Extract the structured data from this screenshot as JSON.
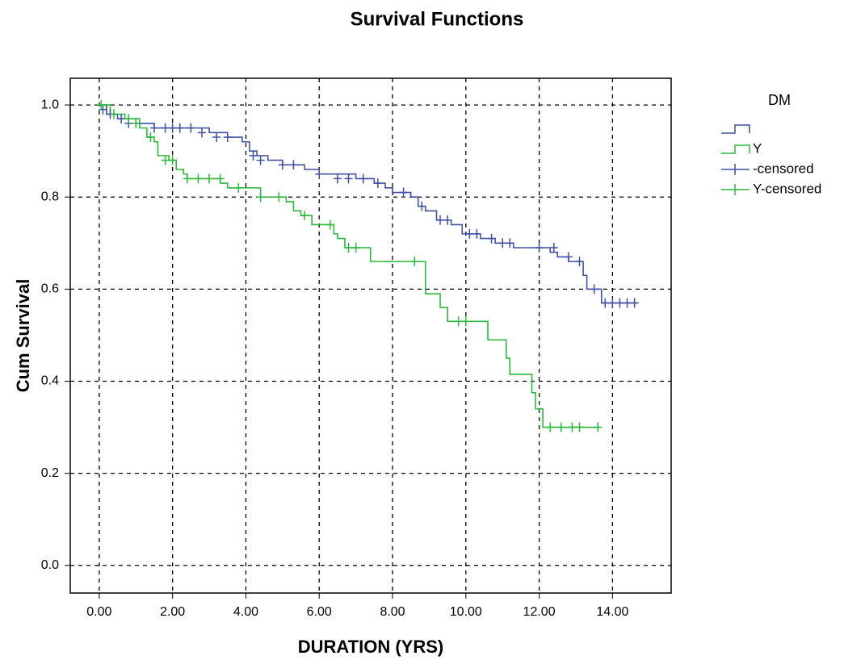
{
  "chart_data": {
    "type": "step",
    "title": "Survival Functions",
    "x_label": "DURATION (YRS)",
    "y_label": "Cum Survival",
    "legend_title": "DM",
    "xlim": [
      -0.79,
      15.6
    ],
    "ylim": [
      -0.06,
      1.058
    ],
    "xticks": [
      {
        "value": 0,
        "label": "0.00"
      },
      {
        "value": 2,
        "label": "2.00"
      },
      {
        "value": 4,
        "label": "4.00"
      },
      {
        "value": 6,
        "label": "6.00"
      },
      {
        "value": 8,
        "label": "8.00"
      },
      {
        "value": 10,
        "label": "10.00"
      },
      {
        "value": 12,
        "label": "12.00"
      },
      {
        "value": 14,
        "label": "14.00"
      }
    ],
    "yticks": [
      {
        "value": 0,
        "label": "0.0"
      },
      0.2,
      0.4,
      0.6,
      0.8,
      {
        "value": 1,
        "label": "1.0"
      }
    ],
    "grid": true,
    "legend": "right",
    "series": [
      {
        "color": "#3f51a3",
        "kind": "curve",
        "x": [
          0,
          0.2,
          0.5,
          1.0,
          1.5,
          3.0,
          3.5,
          3.9,
          4.1,
          4.3,
          4.6,
          5.0,
          5.6,
          6.0,
          7.0,
          7.5,
          7.8,
          8.0,
          8.5,
          8.7,
          8.9,
          9.2,
          9.6,
          9.9,
          10.4,
          10.8,
          11.3,
          12.3,
          12.5,
          12.8,
          13.2,
          13.3,
          13.7,
          14.7
        ],
        "values": [
          1.0,
          0.98,
          0.97,
          0.96,
          0.95,
          0.94,
          0.93,
          0.92,
          0.9,
          0.89,
          0.88,
          0.87,
          0.86,
          0.85,
          0.84,
          0.83,
          0.82,
          0.81,
          0.8,
          0.78,
          0.77,
          0.75,
          0.74,
          0.72,
          0.71,
          0.7,
          0.69,
          0.68,
          0.67,
          0.66,
          0.63,
          0.6,
          0.57,
          0.57
        ]
      },
      {
        "name": "Y",
        "color": "#2db83d",
        "kind": "curve",
        "x": [
          0,
          0.3,
          0.7,
          1.1,
          1.3,
          1.5,
          1.6,
          1.9,
          2.1,
          2.3,
          2.4,
          3.3,
          3.5,
          4.4,
          5.1,
          5.3,
          5.5,
          5.8,
          6.4,
          6.5,
          6.7,
          7.4,
          8.9,
          9.3,
          9.5,
          10.6,
          11.1,
          11.2,
          11.8,
          11.9,
          12.1,
          13.6
        ],
        "values": [
          1.0,
          0.98,
          0.97,
          0.95,
          0.93,
          0.92,
          0.89,
          0.88,
          0.86,
          0.85,
          0.84,
          0.83,
          0.82,
          0.8,
          0.79,
          0.77,
          0.76,
          0.74,
          0.72,
          0.71,
          0.69,
          0.66,
          0.59,
          0.56,
          0.53,
          0.49,
          0.45,
          0.415,
          0.375,
          0.34,
          0.3,
          0.3
        ]
      },
      {
        "name": "-censored",
        "color": "#3f51a3",
        "kind": "censored",
        "x": [
          0.1,
          0.3,
          0.6,
          0.8,
          1.5,
          1.8,
          2.0,
          2.2,
          2.5,
          2.8,
          3.2,
          3.5,
          4.2,
          4.4,
          5.0,
          5.3,
          6.0,
          6.5,
          6.8,
          7.2,
          7.6,
          8.3,
          8.8,
          9.3,
          9.5,
          10.1,
          10.3,
          10.7,
          11.0,
          11.2,
          12.0,
          12.4,
          12.8,
          13.1,
          13.5,
          13.8,
          14.0,
          14.2,
          14.4,
          14.6
        ],
        "values": [
          0.99,
          0.98,
          0.97,
          0.96,
          0.95,
          0.95,
          0.95,
          0.95,
          0.95,
          0.94,
          0.93,
          0.93,
          0.89,
          0.88,
          0.87,
          0.87,
          0.85,
          0.84,
          0.84,
          0.84,
          0.83,
          0.81,
          0.78,
          0.75,
          0.75,
          0.72,
          0.72,
          0.71,
          0.7,
          0.7,
          0.69,
          0.69,
          0.67,
          0.66,
          0.6,
          0.57,
          0.57,
          0.57,
          0.57,
          0.57
        ]
      },
      {
        "name": "Y-censored",
        "color": "#2db83d",
        "kind": "censored",
        "x": [
          0.05,
          0.4,
          0.8,
          1.0,
          1.4,
          1.8,
          2.0,
          2.4,
          2.7,
          3.0,
          3.3,
          3.8,
          4.4,
          4.9,
          5.6,
          6.3,
          6.8,
          7.0,
          8.6,
          9.8,
          10.0,
          12.3,
          12.6,
          12.9,
          13.1,
          13.6
        ],
        "values": [
          1.0,
          0.98,
          0.97,
          0.96,
          0.93,
          0.88,
          0.88,
          0.84,
          0.84,
          0.84,
          0.84,
          0.82,
          0.8,
          0.8,
          0.76,
          0.74,
          0.69,
          0.69,
          0.66,
          0.53,
          0.53,
          0.3,
          0.3,
          0.3,
          0.3,
          0.3
        ]
      }
    ]
  }
}
